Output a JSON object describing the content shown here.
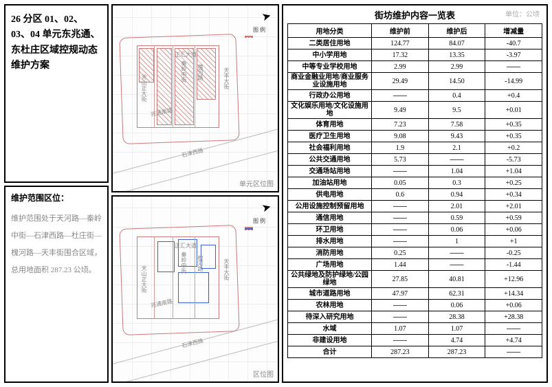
{
  "header": {
    "title": "26 分区 01、02、03、04 单元东兆通、东杜庄区域控规动态维护方案"
  },
  "location": {
    "title": "维护范围区位：",
    "body": "维护范围处于天河路—秦岭中街—石津西路—杜庄街—槐河路—天丰街围合区域，总用地面积 287.23 公顷。"
  },
  "maps": {
    "label1": "单元区位图",
    "label2": "区位图",
    "legend_title": "图 例",
    "streets": [
      "天山正大街",
      "兆通南路",
      "石津西路",
      "天丰大街",
      "秦岭中街",
      "正汇大道",
      "槐河路"
    ]
  },
  "table": {
    "title": "街坊维护内容一览表",
    "unit": "单位：公顷",
    "headers": [
      "用地分类",
      "维护前",
      "维护后",
      "增减量"
    ],
    "rows": [
      {
        "cat": "二类居住用地",
        "a": "124.77",
        "b": "84.07",
        "c": "-40.7"
      },
      {
        "cat": "中小学用地",
        "a": "17.32",
        "b": "13.35",
        "c": "-3.97"
      },
      {
        "cat": "中等专业学校用地",
        "a": "2.99",
        "b": "2.99",
        "c": "——"
      },
      {
        "cat": "商业金融业用地/商业服务业设施用地",
        "a": "29.49",
        "b": "14.50",
        "c": "-14.99"
      },
      {
        "cat": "行政办公用地",
        "a": "——",
        "b": "0.4",
        "c": "+0.4"
      },
      {
        "cat": "文化娱乐用地/文化设施用地",
        "a": "9.49",
        "b": "9.5",
        "c": "+0.01"
      },
      {
        "cat": "体育用地",
        "a": "7.23",
        "b": "7.58",
        "c": "+0.35"
      },
      {
        "cat": "医疗卫生用地",
        "a": "9.08",
        "b": "9.43",
        "c": "+0.35"
      },
      {
        "cat": "社会福利用地",
        "a": "1.9",
        "b": "2.1",
        "c": "+0.2"
      },
      {
        "cat": "公共交通用地",
        "a": "5.73",
        "b": "——",
        "c": "-5.73"
      },
      {
        "cat": "交通场站用地",
        "a": "——",
        "b": "1.04",
        "c": "+1.04"
      },
      {
        "cat": "加油站用地",
        "a": "0.05",
        "b": "0.3",
        "c": "+0.25"
      },
      {
        "cat": "供电用地",
        "a": "0.6",
        "b": "0.94",
        "c": "+0.34"
      },
      {
        "cat": "公用设施控制预留用地",
        "a": "——",
        "b": "2.01",
        "c": "+2.01"
      },
      {
        "cat": "通信用地",
        "a": "——",
        "b": "0.59",
        "c": "+0.59"
      },
      {
        "cat": "环卫用地",
        "a": "——",
        "b": "0.06",
        "c": "+0.06"
      },
      {
        "cat": "排水用地",
        "a": "——",
        "b": "1",
        "c": "+1"
      },
      {
        "cat": "消防用地",
        "a": "0.25",
        "b": "——",
        "c": "-0.25"
      },
      {
        "cat": "广场用地",
        "a": "1.44",
        "b": "——",
        "c": "-1.44"
      },
      {
        "cat": "公共绿地及防护绿地/公园绿地",
        "a": "27.85",
        "b": "40.81",
        "c": "+12.96"
      },
      {
        "cat": "城市道路用地",
        "a": "47.97",
        "b": "62.31",
        "c": "+14.34"
      },
      {
        "cat": "农林用地",
        "a": "——",
        "b": "0.06",
        "c": "+0.06"
      },
      {
        "cat": "待深入研究用地",
        "a": "——",
        "b": "28.38",
        "c": "+28.38"
      },
      {
        "cat": "水域",
        "a": "1.07",
        "b": "1.07",
        "c": "——"
      },
      {
        "cat": "非建设用地",
        "a": "——",
        "b": "4.74",
        "c": "+4.74"
      },
      {
        "cat": "合计",
        "a": "287.23",
        "b": "287.23",
        "c": "——"
      }
    ]
  },
  "colors": {
    "border": "#000000",
    "grid": "#eeeeee",
    "red_outline": "#c97a7a",
    "blue_outline": "#3a5ecb",
    "muted": "#888888"
  }
}
